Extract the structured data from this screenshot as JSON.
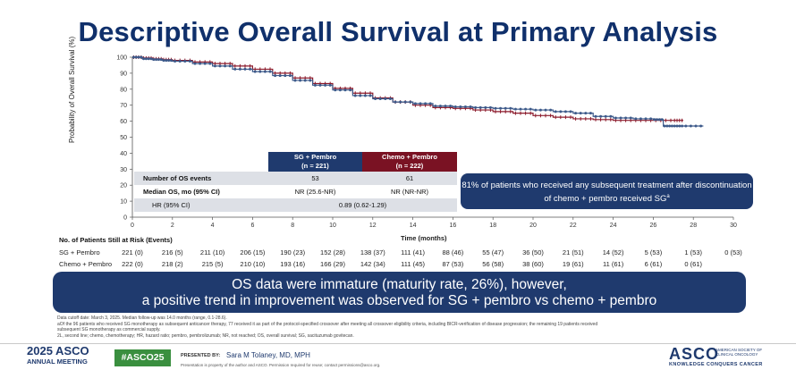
{
  "slide": {
    "title": "Descriptive Overall Survival at Primary Analysis"
  },
  "chart_data": {
    "type": "line",
    "title": "",
    "xlabel": "Time (months)",
    "ylabel": "Probability of Overall Survival (%)",
    "xlim": [
      0,
      30
    ],
    "ylim": [
      0,
      100
    ],
    "xticks": [
      0,
      2,
      4,
      6,
      8,
      10,
      12,
      14,
      16,
      18,
      20,
      22,
      24,
      26,
      28,
      30
    ],
    "yticks": [
      0,
      10,
      20,
      30,
      40,
      50,
      60,
      70,
      80,
      90,
      100
    ],
    "grid": false,
    "colors": {
      "sg": "#3d5a8a",
      "chemo": "#8b1a2b"
    },
    "series": [
      {
        "key": "sg",
        "name": "SG + Pembro",
        "x": [
          0,
          0.5,
          1,
          1.5,
          2,
          3,
          4,
          5,
          6,
          7,
          8,
          9,
          10,
          11,
          12,
          13,
          14,
          15,
          16,
          17,
          18,
          19,
          20,
          21,
          22,
          23,
          24,
          25,
          26,
          26.5,
          27,
          27.5,
          28.5
        ],
        "y": [
          100,
          99,
          98.5,
          98,
          97.5,
          96,
          94.5,
          92.5,
          91,
          88.5,
          85.5,
          82.5,
          79.5,
          76,
          74,
          72,
          71,
          69.5,
          69,
          68.5,
          68,
          67.5,
          67,
          66,
          65,
          63,
          62,
          61.5,
          61,
          57,
          57,
          57,
          57
        ]
      },
      {
        "key": "chemo",
        "name": "Chemo + Pembro",
        "x": [
          0,
          0.5,
          1,
          1.5,
          2,
          3,
          4,
          5,
          6,
          7,
          8,
          9,
          10,
          11,
          12,
          13,
          14,
          15,
          16,
          17,
          18,
          19,
          20,
          21,
          22,
          23,
          24,
          25,
          26,
          27,
          27.5
        ],
        "y": [
          100,
          99.5,
          99,
          98.5,
          98,
          97,
          96,
          94.5,
          92.5,
          90,
          87,
          83.5,
          80.5,
          77.5,
          74.5,
          72,
          70,
          68.5,
          68,
          67,
          66,
          65,
          63.5,
          62.5,
          61.5,
          61,
          60.5,
          60.5,
          60.5,
          60.5,
          60.5
        ]
      }
    ]
  },
  "summary_table": {
    "header_sg": "SG + Pembro",
    "header_sg_n": "(n = 221)",
    "header_chemo": "Chemo + Pembro",
    "header_chemo_n": "(n = 222)",
    "rows": [
      {
        "label": "Number of OS events",
        "sg": "53",
        "chemo": "61"
      },
      {
        "label": "Median OS, mo (95% CI)",
        "sg": "NR (25.6-NR)",
        "chemo": "NR (NR-NR)"
      },
      {
        "label": "HR (95% CI)",
        "combined": "0.89 (0.62-1.29)"
      }
    ]
  },
  "callout": {
    "text": "81% of patients who received any subsequent treatment after discontinuation of chemo + pembro received SGa"
  },
  "risk_table": {
    "title": "No. of Patients Still at Risk (Events)",
    "times": [
      0,
      2,
      4,
      6,
      8,
      10,
      12,
      14,
      16,
      18,
      20,
      22,
      24,
      26,
      28,
      30
    ],
    "rows": [
      {
        "label": "SG + Pembro",
        "values": [
          "221 (0)",
          "216 (5)",
          "211 (10)",
          "206 (15)",
          "190 (23)",
          "152 (28)",
          "138 (37)",
          "111 (41)",
          "88 (46)",
          "55 (47)",
          "36 (50)",
          "21 (51)",
          "14 (52)",
          "5 (53)",
          "1 (53)",
          "0 (53)"
        ]
      },
      {
        "label": "Chemo + Pembro",
        "values": [
          "222 (0)",
          "218 (2)",
          "215 (5)",
          "210 (10)",
          "193 (16)",
          "166 (29)",
          "142 (34)",
          "111 (45)",
          "87 (53)",
          "56 (58)",
          "38 (60)",
          "19 (61)",
          "11 (61)",
          "6 (61)",
          "0 (61)",
          ""
        ]
      }
    ]
  },
  "banner": {
    "line1": "OS data were immature (maturity rate, 26%), however,",
    "line2": "a positive trend in improvement was observed for SG + pembro vs chemo + pembro"
  },
  "footnotes": {
    "line1": "Data cutoff date: March 3, 2025. Median follow-up was 14.0 months (range, 0.1-28.6).",
    "line2": "aOf the 96 patients who received SG monotherapy as subsequent anticancer therapy, 77 received it as part of the protocol-specified crossover after meeting all crossover eligibility criteria, including BICR-verification of disease progression; the remaining 19 patients received",
    "line3": "subsequent SG monotherapy as commercial supply.",
    "line4": "2L, second line; chemo, chemotherapy; HR, hazard ratio; pembro, pembrolizumab; NR, not reached; OS, overall survival; SG, sacituzumab govitecan."
  },
  "footer": {
    "asco_year": "2025 ASCO",
    "asco_meeting": "ANNUAL MEETING",
    "hashtag": "#ASCO25",
    "presented_by": "PRESENTED BY:",
    "presenter": "Sara M Tolaney, MD, MPH",
    "property_note": "Presentation is property of the author and ASCO. Permission required for reuse; contact permissions@asco.org.",
    "asco_brand": "ASCO",
    "asco_society": "AMERICAN SOCIETY OF CLINICAL ONCOLOGY",
    "tagline": "KNOWLEDGE CONQUERS CANCER"
  }
}
